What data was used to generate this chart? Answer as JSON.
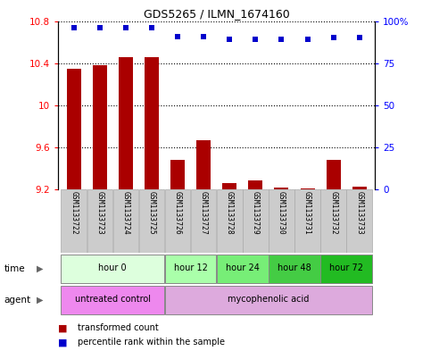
{
  "title": "GDS5265 / ILMN_1674160",
  "samples": [
    "GSM1133722",
    "GSM1133723",
    "GSM1133724",
    "GSM1133725",
    "GSM1133726",
    "GSM1133727",
    "GSM1133728",
    "GSM1133729",
    "GSM1133730",
    "GSM1133731",
    "GSM1133732",
    "GSM1133733"
  ],
  "transformed_count": [
    10.35,
    10.38,
    10.46,
    10.46,
    9.48,
    9.67,
    9.26,
    9.29,
    9.22,
    9.21,
    9.48,
    9.23
  ],
  "percentile_rank": [
    96,
    96,
    96,
    96,
    91,
    91,
    89,
    89,
    89,
    89,
    90,
    90
  ],
  "ylim_left": [
    9.2,
    10.8
  ],
  "ylim_right": [
    0,
    100
  ],
  "yticks_left": [
    9.2,
    9.6,
    10.0,
    10.4,
    10.8
  ],
  "yticks_right": [
    0,
    25,
    50,
    75,
    100
  ],
  "ytick_labels_left": [
    "9.2",
    "9.6",
    "10",
    "10.4",
    "10.8"
  ],
  "ytick_labels_right": [
    "0",
    "25",
    "50",
    "75",
    "100%"
  ],
  "bar_color": "#aa0000",
  "dot_color": "#0000cc",
  "time_groups": [
    {
      "label": "hour 0",
      "start": 0,
      "end": 3,
      "color": "#ddffdd"
    },
    {
      "label": "hour 12",
      "start": 4,
      "end": 5,
      "color": "#aaffaa"
    },
    {
      "label": "hour 24",
      "start": 6,
      "end": 7,
      "color": "#77ee77"
    },
    {
      "label": "hour 48",
      "start": 8,
      "end": 9,
      "color": "#44cc44"
    },
    {
      "label": "hour 72",
      "start": 10,
      "end": 11,
      "color": "#22bb22"
    }
  ],
  "agent_groups": [
    {
      "label": "untreated control",
      "start": 0,
      "end": 3,
      "color": "#ee88ee"
    },
    {
      "label": "mycophenolic acid",
      "start": 4,
      "end": 11,
      "color": "#ddaadd"
    }
  ],
  "legend_bar_label": "transformed count",
  "legend_dot_label": "percentile rank within the sample",
  "sample_bg_color": "#cccccc",
  "time_label": "time",
  "agent_label": "agent",
  "bar_width": 0.55
}
